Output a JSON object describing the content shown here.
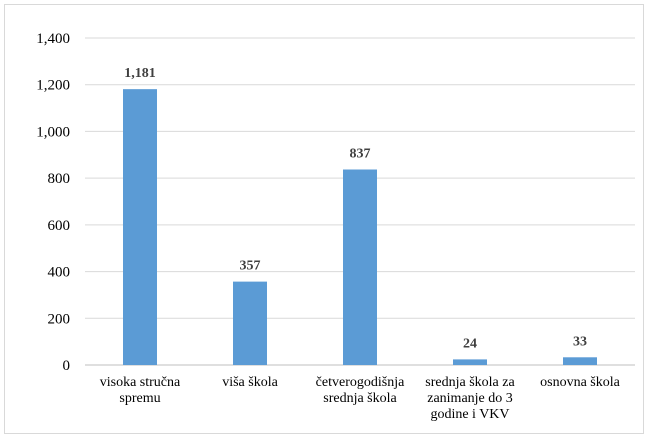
{
  "chart_data": {
    "type": "bar",
    "categories": [
      [
        "visoka stručna",
        "spremu"
      ],
      [
        "viša škola"
      ],
      [
        "četverogodišnja",
        "srednja škola"
      ],
      [
        "srednja škola za",
        "zanimanje do 3",
        "godine i VKV"
      ],
      [
        "osnovna škola"
      ]
    ],
    "values": [
      1181,
      357,
      837,
      24,
      33
    ],
    "data_labels": [
      "1,181",
      "357",
      "837",
      "24",
      "33"
    ],
    "ylim": [
      0,
      1400
    ],
    "yticks": [
      0,
      200,
      400,
      600,
      800,
      1000,
      1200,
      1400
    ],
    "ytick_labels": [
      "0",
      "200",
      "400",
      "600",
      "800",
      "1,000",
      "1,200",
      "1,400"
    ],
    "grid": true,
    "legend": "none",
    "bar_color": "#5b9bd5",
    "grid_color": "#d9d9d9"
  }
}
